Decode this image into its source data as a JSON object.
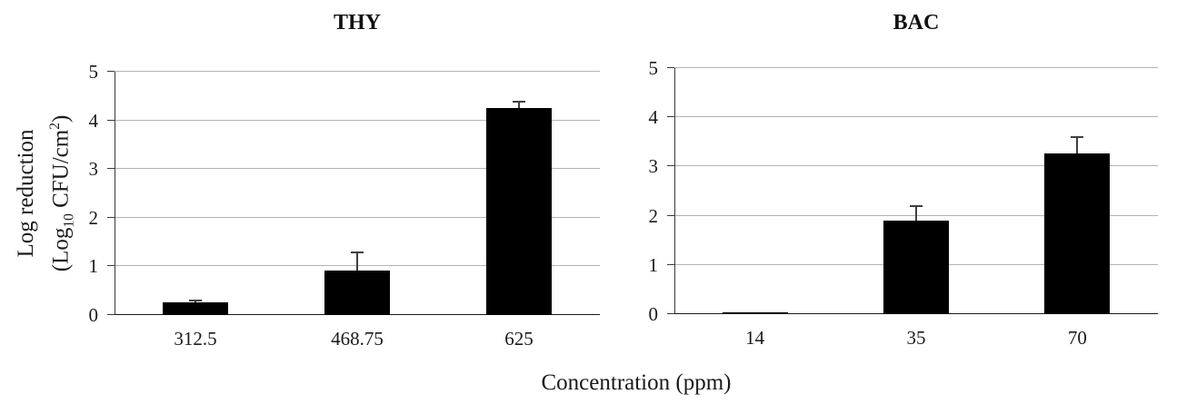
{
  "figure": {
    "xlabel": "Concentration (ppm)",
    "ylabel": {
      "line1": "Log reduction",
      "line2_p0": "(Log",
      "line2_sub": "10",
      "line2_p1": " CFU/cm",
      "line2_sup": "2",
      "line2_p2": ")"
    }
  },
  "colors": {
    "bar": "#000000",
    "gridline": "#b3b3b3",
    "axis": "#3a3a3a",
    "baseline": "#1a1a1a",
    "error_bar": "#404040",
    "background": "#ffffff",
    "text": "#1a1a1a"
  },
  "chart_data": [
    {
      "type": "bar",
      "title": "THY",
      "categories": [
        "312.5",
        "468.75",
        "625"
      ],
      "values": [
        0.26,
        0.92,
        4.25
      ],
      "errors_plus": [
        0.04,
        0.37,
        0.13
      ],
      "xlabel": "Concentration (ppm)",
      "ylabel": "Log reduction (Log10 CFU/cm2)",
      "ylim": [
        0,
        5
      ],
      "yticks": [
        0,
        1,
        2,
        3,
        4,
        5
      ],
      "grid": true,
      "legend": "none"
    },
    {
      "type": "bar",
      "title": "BAC",
      "categories": [
        "14",
        "35",
        "70"
      ],
      "values": [
        0.02,
        1.9,
        3.27
      ],
      "errors_plus": [
        0,
        0.3,
        0.33
      ],
      "xlabel": "Concentration (ppm)",
      "ylabel": "Log reduction (Log10 CFU/cm2)",
      "ylim": [
        0,
        5
      ],
      "yticks": [
        0,
        1,
        2,
        3,
        4,
        5
      ],
      "grid": true,
      "legend": "none"
    }
  ]
}
